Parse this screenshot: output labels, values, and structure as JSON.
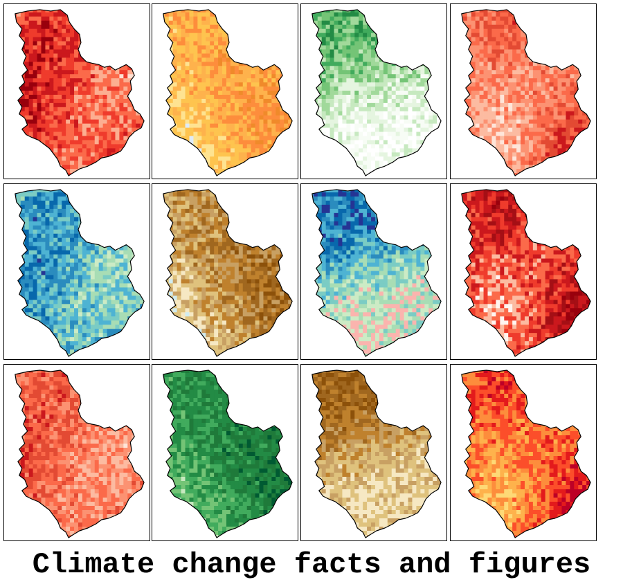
{
  "caption": "Climate change facts and figures",
  "palettes": {
    "reds": [
      "#fee0d2",
      "#fcae91",
      "#fb6a4a",
      "#ef3b2c",
      "#cb181d",
      "#99000d"
    ],
    "salmon": [
      "#fee5d9",
      "#fcbba1",
      "#fc9272",
      "#fb6a4a",
      "#e34a33",
      "#cb181d"
    ],
    "oranges": [
      "#deebf7",
      "#fee391",
      "#fec44f",
      "#feb24c",
      "#fd8d3c",
      "#f08a2a"
    ],
    "greens": [
      "#ffffff",
      "#f7fcf5",
      "#e5f5e0",
      "#c7e9c0",
      "#a1d99b",
      "#74c476",
      "#41ab5d",
      "#238b45"
    ],
    "dark_greens": [
      "#c7e9c0",
      "#74c476",
      "#41ab5d",
      "#238b45",
      "#1f7a3a",
      "#005a32"
    ],
    "blues": [
      "#fbb4ae",
      "#ccebc5",
      "#a8ddb5",
      "#7bccc4",
      "#4eb3d3",
      "#2b8cbe",
      "#0868ac",
      "#253494"
    ],
    "browns": [
      "#d1ecf0",
      "#f6e8c3",
      "#dfc27d",
      "#c8a063",
      "#bf812d",
      "#a0671f",
      "#8c510a"
    ],
    "dark_browns": [
      "#f6e8c3",
      "#dfc27d",
      "#c8a063",
      "#bf812d",
      "#a0671f",
      "#8c510a"
    ],
    "dark_reds": [
      "#fff5f0",
      "#fcbba1",
      "#fb6a4a",
      "#ef3b2c",
      "#cb181d",
      "#a50f15",
      "#99000d"
    ],
    "ylorrd": [
      "#fed976",
      "#feb24c",
      "#fd8d3c",
      "#fc4e2a",
      "#e31a1c",
      "#bd0026"
    ]
  },
  "maps": [
    {
      "name": "map-panel-1",
      "palette": "reds",
      "icon": "serbia-map"
    },
    {
      "name": "map-panel-2",
      "palette": "oranges",
      "icon": "serbia-map"
    },
    {
      "name": "map-panel-3",
      "palette": "greens",
      "icon": "serbia-map"
    },
    {
      "name": "map-panel-4",
      "palette": "salmon",
      "icon": "serbia-map"
    },
    {
      "name": "map-panel-5",
      "palette": "blues",
      "icon": "serbia-map"
    },
    {
      "name": "map-panel-6",
      "palette": "browns",
      "icon": "serbia-map"
    },
    {
      "name": "map-panel-7",
      "palette": "blues",
      "icon": "serbia-map"
    },
    {
      "name": "map-panel-8",
      "palette": "dark_reds",
      "icon": "serbia-map"
    },
    {
      "name": "map-panel-9",
      "palette": "salmon",
      "icon": "serbia-map"
    },
    {
      "name": "map-panel-10",
      "palette": "dark_greens",
      "icon": "serbia-map"
    },
    {
      "name": "map-panel-11",
      "palette": "dark_browns",
      "icon": "serbia-map"
    },
    {
      "name": "map-panel-12",
      "palette": "ylorrd",
      "icon": "serbia-map"
    }
  ]
}
